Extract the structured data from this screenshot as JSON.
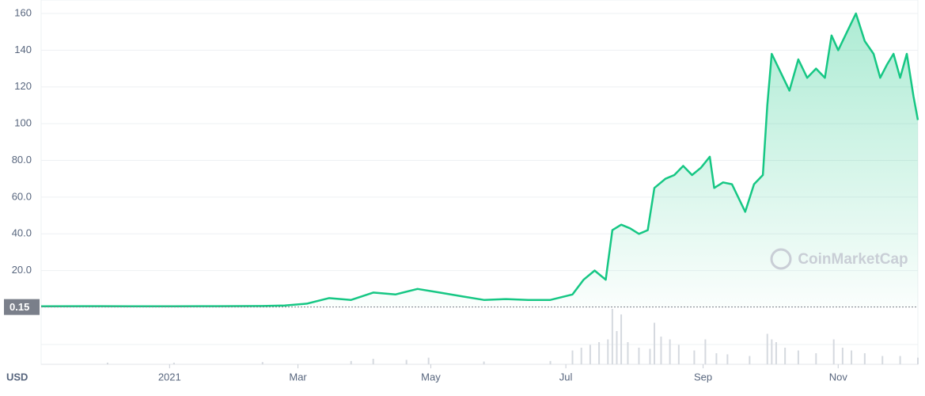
{
  "chart_data": {
    "type": "area",
    "currency_label": "USD",
    "watermark": "CoinMarketCap",
    "price_marker": {
      "value": 0.15,
      "label": "0.15"
    },
    "color": "#16c784",
    "grid": true,
    "xlim": [
      0,
      396
    ],
    "xticks": [
      {
        "value": 58,
        "label": "2021"
      },
      {
        "value": 116,
        "label": "Mar"
      },
      {
        "value": 176,
        "label": "May"
      },
      {
        "value": 237,
        "label": "Jul"
      },
      {
        "value": 299,
        "label": "Sep"
      },
      {
        "value": 360,
        "label": "Nov"
      }
    ],
    "ylim": [
      0,
      160
    ],
    "yticks": [
      {
        "value": 20,
        "label": "20.0"
      },
      {
        "value": 40,
        "label": "40.0"
      },
      {
        "value": 60,
        "label": "60.0"
      },
      {
        "value": 80,
        "label": "80.0"
      },
      100,
      120,
      140,
      160
    ],
    "series": [
      {
        "x": [
          0,
          20,
          40,
          60,
          80,
          100,
          110,
          120,
          130,
          140,
          150,
          160,
          170,
          180,
          190,
          200,
          210,
          220,
          230,
          240,
          245,
          250,
          255,
          258,
          262,
          266,
          270,
          274,
          277,
          282,
          286,
          290,
          294,
          298,
          302,
          304,
          308,
          312,
          318,
          322,
          326,
          328,
          330,
          334,
          338,
          342,
          346,
          350,
          354,
          357,
          360,
          364,
          368,
          372,
          376,
          379,
          382,
          385,
          388,
          391,
          394,
          396
        ],
        "values": [
          0.5,
          0.6,
          0.5,
          0.5,
          0.6,
          0.7,
          1,
          2,
          5,
          4,
          8,
          7,
          10,
          8,
          6,
          4,
          4.5,
          4,
          4,
          7,
          15,
          20,
          15,
          42,
          45,
          43,
          40,
          42,
          65,
          70,
          72,
          77,
          72,
          76,
          82,
          65,
          68,
          67,
          52,
          67,
          72,
          110,
          138,
          128,
          118,
          135,
          125,
          130,
          125,
          148,
          140,
          150,
          160,
          145,
          138,
          125,
          132,
          138,
          125,
          138,
          115,
          102
        ]
      }
    ],
    "volume": {
      "x": [
        30,
        60,
        100,
        140,
        150,
        165,
        175,
        200,
        230,
        240,
        244,
        248,
        252,
        256,
        258,
        260,
        262,
        265,
        270,
        275,
        277,
        280,
        284,
        288,
        295,
        300,
        305,
        310,
        320,
        328,
        330,
        332,
        336,
        342,
        350,
        358,
        362,
        366,
        372,
        380,
        388,
        396
      ],
      "values": [
        3,
        3,
        4,
        6,
        10,
        8,
        12,
        5,
        6,
        25,
        30,
        35,
        40,
        45,
        100,
        60,
        90,
        40,
        30,
        28,
        75,
        50,
        45,
        35,
        25,
        45,
        20,
        18,
        15,
        55,
        45,
        40,
        30,
        25,
        20,
        45,
        30,
        25,
        20,
        15,
        15,
        12
      ]
    }
  }
}
